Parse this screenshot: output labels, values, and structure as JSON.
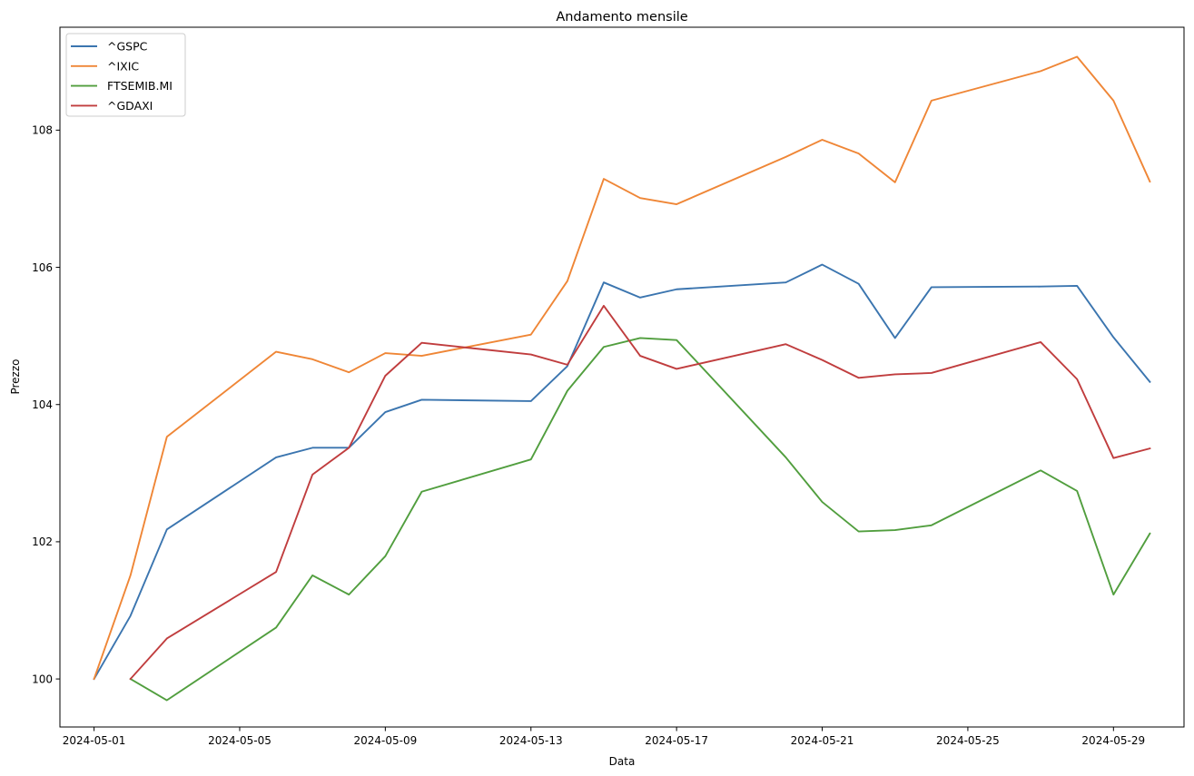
{
  "chart_data": {
    "type": "line",
    "title": "Andamento mensile",
    "xlabel": "Data",
    "ylabel": "Prezzo",
    "x": [
      "2024-05-01",
      "2024-05-02",
      "2024-05-03",
      "2024-05-06",
      "2024-05-07",
      "2024-05-08",
      "2024-05-09",
      "2024-05-10",
      "2024-05-13",
      "2024-05-14",
      "2024-05-15",
      "2024-05-16",
      "2024-05-17",
      "2024-05-20",
      "2024-05-21",
      "2024-05-22",
      "2024-05-23",
      "2024-05-24",
      "2024-05-27",
      "2024-05-28",
      "2024-05-29",
      "2024-05-30"
    ],
    "xticks": [
      "2024-05-01",
      "2024-05-05",
      "2024-05-09",
      "2024-05-13",
      "2024-05-17",
      "2024-05-21",
      "2024-05-25",
      "2024-05-29"
    ],
    "yticks": [
      100,
      102,
      104,
      106,
      108
    ],
    "xlim": [
      "2024-04-30 01:30",
      "2024-05-30 22:30"
    ],
    "ylim": [
      99.3,
      109.5
    ],
    "grid": false,
    "legend": "top-left",
    "series": [
      {
        "name": "^GSPC",
        "color": "#3b75af",
        "values": [
          100.0,
          100.92,
          102.18,
          103.23,
          103.37,
          103.37,
          103.89,
          104.07,
          104.05,
          104.56,
          105.78,
          105.56,
          105.68,
          105.78,
          106.04,
          105.76,
          104.97,
          105.71,
          105.72,
          105.73,
          104.98,
          104.33
        ]
      },
      {
        "name": "^IXIC",
        "color": "#ef8636",
        "values": [
          100.0,
          101.51,
          103.53,
          104.77,
          104.66,
          104.47,
          104.75,
          104.71,
          105.02,
          105.8,
          107.29,
          107.01,
          106.92,
          107.61,
          107.86,
          107.66,
          107.24,
          108.43,
          108.86,
          109.07,
          108.43,
          107.25
        ]
      },
      {
        "name": "FTSEMIB.MI",
        "color": "#519e3e",
        "values": [
          null,
          100.0,
          99.69,
          100.75,
          101.51,
          101.23,
          101.79,
          102.73,
          103.2,
          104.2,
          104.84,
          104.97,
          104.94,
          103.23,
          102.58,
          102.15,
          102.17,
          102.24,
          103.04,
          102.74,
          101.23,
          102.12
        ]
      },
      {
        "name": "^GDAXI",
        "color": "#c03d3e",
        "values": [
          null,
          100.0,
          100.59,
          101.56,
          102.98,
          103.37,
          104.42,
          104.9,
          104.73,
          104.58,
          105.44,
          104.71,
          104.52,
          104.88,
          104.65,
          104.39,
          104.44,
          104.46,
          104.91,
          104.37,
          103.22,
          103.36
        ]
      }
    ]
  }
}
